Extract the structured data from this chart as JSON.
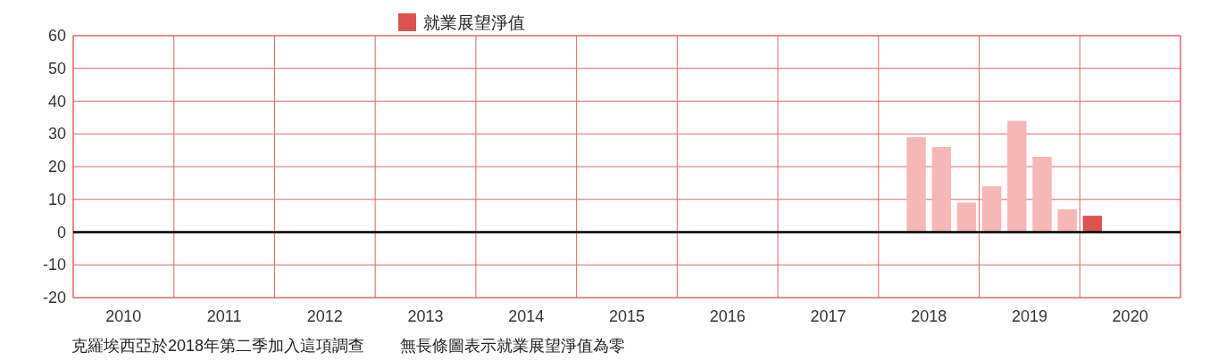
{
  "chart_data": {
    "type": "bar",
    "x": [
      2018.375,
      2018.625,
      2018.875,
      2019.125,
      2019.375,
      2019.625,
      2019.875,
      2020.125
    ],
    "series": [
      {
        "name": "就業展望淨值",
        "color": "#d9534f",
        "values": [
          29,
          26,
          9,
          14,
          34,
          23,
          7,
          5
        ],
        "colors": [
          "#f5b8b6",
          "#f5b8b6",
          "#f5b8b6",
          "#f5b8b6",
          "#f5b8b6",
          "#f5b8b6",
          "#f5b8b6",
          "#d9534f"
        ]
      }
    ],
    "xlim": [
      2010,
      2021
    ],
    "xticks": [
      {
        "value": 2010,
        "label": null
      },
      {
        "value": 2010.5,
        "label": "2010"
      },
      {
        "value": 2011,
        "label": null
      },
      {
        "value": 2011.5,
        "label": "2011"
      },
      {
        "value": 2012,
        "label": null
      },
      {
        "value": 2012.5,
        "label": "2012"
      },
      {
        "value": 2013,
        "label": null
      },
      {
        "value": 2013.5,
        "label": "2013"
      },
      {
        "value": 2014,
        "label": null
      },
      {
        "value": 2014.5,
        "label": "2014"
      },
      {
        "value": 2015,
        "label": null
      },
      {
        "value": 2015.5,
        "label": "2015"
      },
      {
        "value": 2016,
        "label": null
      },
      {
        "value": 2016.5,
        "label": "2016"
      },
      {
        "value": 2017,
        "label": null
      },
      {
        "value": 2017.5,
        "label": "2017"
      },
      {
        "value": 2018,
        "label": null
      },
      {
        "value": 2018.5,
        "label": "2018"
      },
      {
        "value": 2019,
        "label": null
      },
      {
        "value": 2019.5,
        "label": "2019"
      },
      {
        "value": 2020,
        "label": null
      },
      {
        "value": 2020.5,
        "label": "2020"
      },
      {
        "value": 2021,
        "label": null
      }
    ],
    "ylim": [
      -20,
      60
    ],
    "yticks": [
      -20,
      -10,
      0,
      10,
      20,
      30,
      40,
      50,
      60
    ],
    "grid": true,
    "legend": "top",
    "ref_lines": [
      {
        "axis": "y",
        "value": 0,
        "color": "#000000"
      }
    ],
    "annotations": [
      "克羅埃西亞於2018年第二季加入這項調查",
      "無長條圖表示就業展望淨值為零"
    ]
  }
}
